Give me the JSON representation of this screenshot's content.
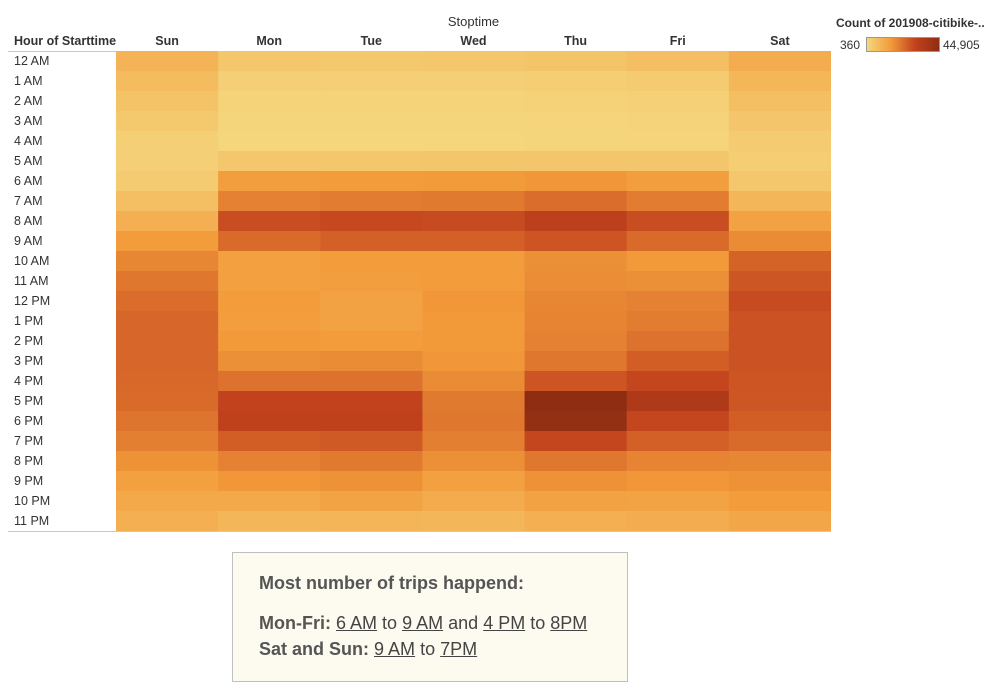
{
  "legend": {
    "title": "Count of 201908-citibike-..",
    "min_label": "360",
    "max_label": "44,905"
  },
  "colors": {
    "low": "#f5d77e",
    "mid": "#f29a3a",
    "high": "#c2421d",
    "max": "#8f2d12"
  },
  "note": {
    "heading": "Most number of trips happend:",
    "weekday_label": "Mon-Fri:",
    "weekday_from1": "6 AM",
    "weekday_to_word1": "to",
    "weekday_to1": "9 AM",
    "weekday_and": "and",
    "weekday_from2": "4 PM",
    "weekday_to_word2": "to",
    "weekday_to2": "8PM",
    "weekend_label": "Sat and Sun:",
    "weekend_from": "9 AM",
    "weekend_to_word": "to",
    "weekend_to": "7PM"
  },
  "chart_data": {
    "type": "heatmap",
    "x_title": "Stoptime",
    "y_title": "Hour of Starttime",
    "x": [
      "Sun",
      "Mon",
      "Tue",
      "Wed",
      "Thu",
      "Fri",
      "Sat"
    ],
    "y": [
      "12 AM",
      "1 AM",
      "2 AM",
      "3 AM",
      "4 AM",
      "5 AM",
      "6 AM",
      "7 AM",
      "8 AM",
      "9 AM",
      "10 AM",
      "11 AM",
      "12 PM",
      "1 PM",
      "2 PM",
      "3 PM",
      "4 PM",
      "5 PM",
      "6 PM",
      "7 PM",
      "8 PM",
      "9 PM",
      "10 PM",
      "11 PM"
    ],
    "vmin": 360,
    "vmax": 44905,
    "values": [
      [
        9500,
        4500,
        4200,
        4500,
        5200,
        6500,
        11000
      ],
      [
        7500,
        2500,
        2300,
        2400,
        2800,
        3500,
        8500
      ],
      [
        5500,
        1500,
        1400,
        1500,
        1700,
        2200,
        6500
      ],
      [
        4000,
        900,
        800,
        900,
        1000,
        1300,
        5000
      ],
      [
        2500,
        700,
        650,
        700,
        800,
        1000,
        3500
      ],
      [
        2300,
        4500,
        4500,
        4600,
        4700,
        4600,
        2800
      ],
      [
        3500,
        15000,
        15500,
        15800,
        16500,
        15000,
        4500
      ],
      [
        6500,
        21000,
        22000,
        22500,
        25000,
        22000,
        8500
      ],
      [
        10500,
        31500,
        32500,
        32000,
        35000,
        31500,
        14000
      ],
      [
        15500,
        25500,
        27500,
        27500,
        30000,
        25500,
        19000
      ],
      [
        20000,
        14500,
        15500,
        15500,
        18000,
        16000,
        27000
      ],
      [
        23000,
        14500,
        15000,
        15500,
        18500,
        18000,
        29500
      ],
      [
        25000,
        15500,
        14000,
        16500,
        20000,
        21000,
        32000
      ],
      [
        26500,
        15000,
        14000,
        16000,
        20500,
        22000,
        30500
      ],
      [
        26500,
        16000,
        15500,
        16000,
        21000,
        24000,
        30500
      ],
      [
        26500,
        18000,
        19000,
        16500,
        23000,
        28000,
        30500
      ],
      [
        26000,
        24000,
        24000,
        19000,
        30000,
        33000,
        30000
      ],
      [
        25500,
        34000,
        34000,
        22500,
        44905,
        38000,
        29500
      ],
      [
        23500,
        34500,
        34500,
        23000,
        44000,
        33000,
        28000
      ],
      [
        21500,
        28000,
        29000,
        21500,
        33000,
        27500,
        25500
      ],
      [
        17500,
        21000,
        22500,
        18000,
        23000,
        20500,
        20000
      ],
      [
        14500,
        16500,
        17500,
        14500,
        17500,
        16500,
        17500
      ],
      [
        12500,
        12500,
        13500,
        11500,
        14000,
        13500,
        15500
      ],
      [
        10500,
        8500,
        9000,
        8500,
        10500,
        11000,
        13000
      ]
    ]
  }
}
